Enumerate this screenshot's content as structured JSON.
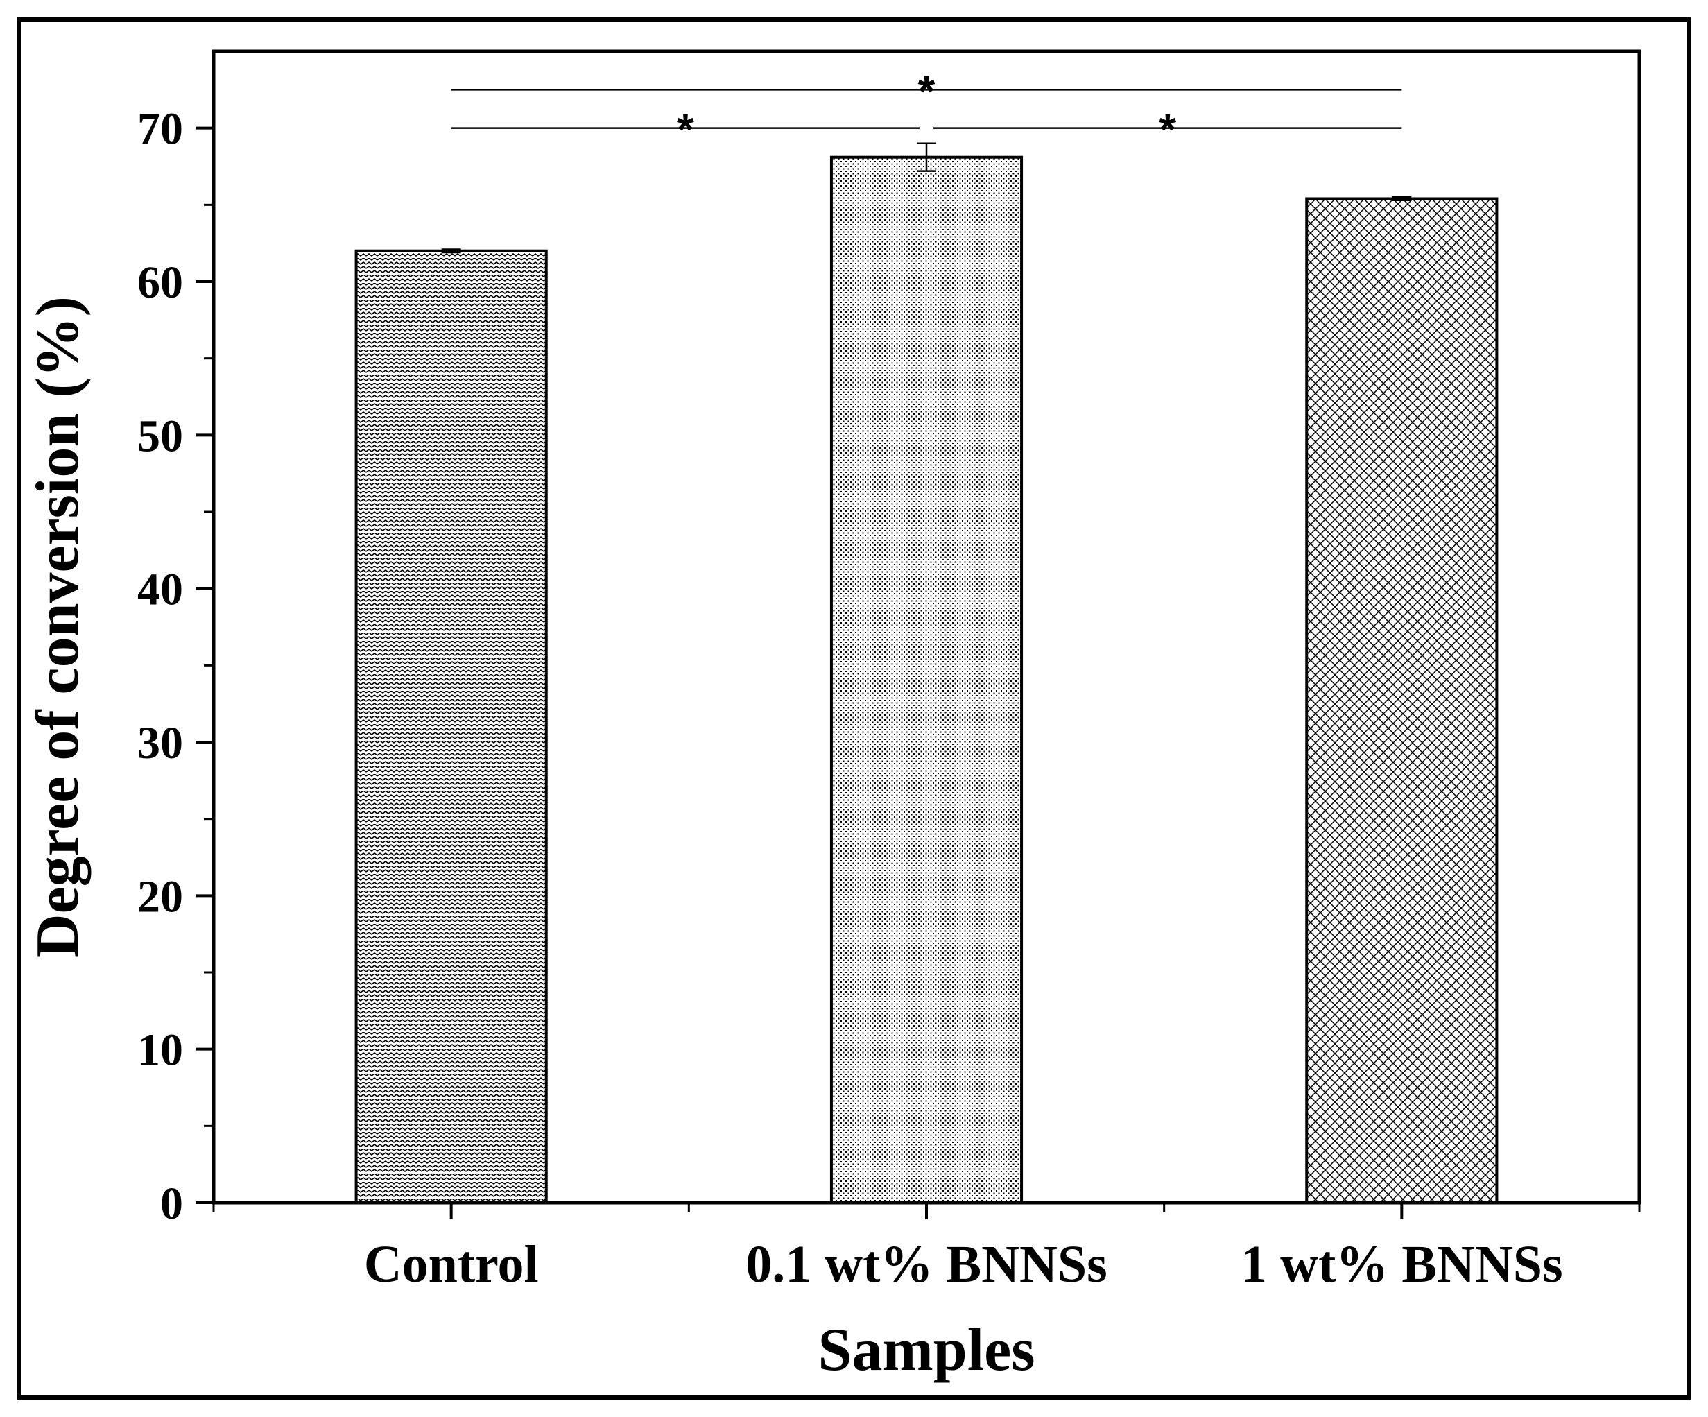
{
  "chart_data": {
    "type": "bar",
    "title": "",
    "xlabel": "Samples",
    "ylabel": "Degree of conversion (%)",
    "categories": [
      "Control",
      "0.1 wt% BNNSs",
      "1 wt% BNNSs"
    ],
    "values": [
      62.0,
      68.1,
      65.4
    ],
    "error": [
      0.1,
      0.9,
      0.1
    ],
    "ylim": [
      0,
      75
    ],
    "yticks": [
      0,
      10,
      20,
      30,
      40,
      50,
      60,
      70
    ],
    "grid": false,
    "patterns": [
      "zigzag",
      "dots",
      "crosshatch"
    ],
    "significance": [
      {
        "between": [
          "Control",
          "1 wt% BNNSs"
        ],
        "label": "*"
      },
      {
        "between": [
          "Control",
          "0.1 wt% BNNSs"
        ],
        "label": "*"
      },
      {
        "between": [
          "0.1 wt% BNNSs",
          "1 wt% BNNSs"
        ],
        "label": "*"
      }
    ],
    "colors": {
      "bar_fill": "#ffffff",
      "ink": "#000000",
      "background": "#ffffff"
    }
  }
}
